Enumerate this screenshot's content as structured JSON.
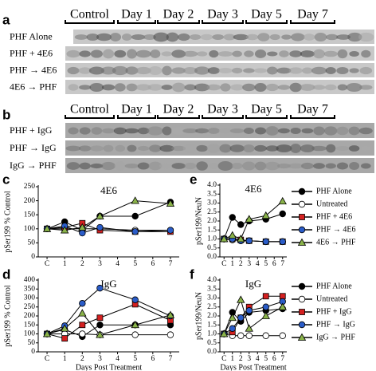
{
  "blots": [
    {
      "panel": "a",
      "columns": [
        "Control",
        "Day 1",
        "Day 2",
        "Day 3",
        "Day 5",
        "Day 7"
      ],
      "rows": [
        "PHF Alone",
        "PHF + 4E6",
        "PHF → 4E6",
        "4E6 → PHF"
      ]
    },
    {
      "panel": "b",
      "columns": [
        "Control",
        "Day 1",
        "Day 2",
        "Day 3",
        "Day 5",
        "Day 7"
      ],
      "rows": [
        "PHF + IgG",
        "PHF → IgG",
        "IgG → PHF"
      ]
    }
  ],
  "chart_data": [
    {
      "type": "line",
      "panel": "c",
      "title": "4E6",
      "ylabel": "pSer199 % Control",
      "x": [
        0,
        1,
        2,
        3,
        5,
        7
      ],
      "xlim": [
        -0.5,
        7.5
      ],
      "xticks": [
        {
          "value": 0,
          "label": "C"
        },
        1,
        2,
        3,
        4,
        5,
        6,
        7
      ],
      "ylim": [
        0,
        250
      ],
      "yticks": [
        0,
        50,
        100,
        150,
        200,
        250
      ],
      "series": [
        {
          "name": "PHF Alone",
          "color": "#000000",
          "marker": "circle",
          "values": [
            100,
            125,
            95,
            145,
            145,
            195
          ]
        },
        {
          "name": "Untreated",
          "color": "#ffffff",
          "marker": "circle",
          "values": [
            100,
            100,
            100,
            100,
            95,
            95
          ]
        },
        {
          "name": "PHF + 4E6",
          "color": "#d42020",
          "marker": "square",
          "values": [
            100,
            105,
            120,
            95,
            90,
            90
          ]
        },
        {
          "name": "PHF → 4E6",
          "color": "#2a5cc8",
          "marker": "circle",
          "values": [
            100,
            110,
            85,
            105,
            90,
            95
          ]
        },
        {
          "name": "4E6 → PHF",
          "color": "#8ab34a",
          "marker": "triangle",
          "values": [
            100,
            95,
            105,
            145,
            200,
            190
          ]
        }
      ]
    },
    {
      "type": "line",
      "panel": "e",
      "title": "4E6",
      "ylabel": "pSer199/NeuN",
      "legend": "right",
      "x": [
        0,
        1,
        2,
        3,
        5,
        7
      ],
      "xlim": [
        -0.5,
        7.5
      ],
      "xticks": [
        {
          "value": 0,
          "label": "C"
        },
        1,
        2,
        3,
        4,
        5,
        6,
        7
      ],
      "ylim": [
        0,
        4
      ],
      "yticks": [
        {
          "value": 0,
          "label": "0.0"
        },
        0.5,
        {
          "value": 1,
          "label": "1.0"
        },
        1.5,
        {
          "value": 2,
          "label": "2.0"
        },
        2.5,
        {
          "value": 3,
          "label": "3.0"
        },
        3.5,
        {
          "value": 4,
          "label": "4.0"
        }
      ],
      "series": [
        {
          "name": "PHF Alone",
          "color": "#000000",
          "marker": "circle",
          "values": [
            1,
            2.2,
            1.8,
            2.0,
            2.1,
            2.4
          ]
        },
        {
          "name": "Untreated",
          "color": "#ffffff",
          "marker": "circle",
          "values": [
            1,
            0.95,
            0.9,
            0.9,
            0.85,
            0.85
          ]
        },
        {
          "name": "PHF + 4E6",
          "color": "#d42020",
          "marker": "square",
          "values": [
            1,
            1.0,
            0.95,
            0.9,
            0.85,
            0.85
          ]
        },
        {
          "name": "PHF → 4E6",
          "color": "#2a5cc8",
          "marker": "circle",
          "values": [
            1,
            1.0,
            0.9,
            0.9,
            0.85,
            0.85
          ]
        },
        {
          "name": "4E6 → PHF",
          "color": "#8ab34a",
          "marker": "triangle",
          "values": [
            1,
            1.2,
            1.0,
            2.1,
            2.3,
            3.1
          ]
        }
      ]
    },
    {
      "type": "line",
      "panel": "d",
      "title": "IgG",
      "ylabel": "pSer199 % Control",
      "xlabel": "Days Post Treatment",
      "x": [
        0,
        1,
        2,
        3,
        5,
        7
      ],
      "xlim": [
        -0.5,
        7.5
      ],
      "xticks": [
        {
          "value": 0,
          "label": "C"
        },
        1,
        2,
        3,
        4,
        5,
        6,
        7
      ],
      "ylim": [
        0,
        400
      ],
      "yticks": [
        0,
        50,
        100,
        150,
        200,
        250,
        300,
        350,
        400
      ],
      "series": [
        {
          "name": "PHF Alone",
          "color": "#000000",
          "marker": "circle",
          "values": [
            100,
            125,
            85,
            150,
            150,
            150
          ]
        },
        {
          "name": "Untreated",
          "color": "#ffffff",
          "marker": "circle",
          "values": [
            100,
            100,
            100,
            95,
            95,
            95
          ]
        },
        {
          "name": "PHF + IgG",
          "color": "#d42020",
          "marker": "square",
          "values": [
            100,
            75,
            150,
            190,
            265,
            175
          ]
        },
        {
          "name": "PHF → IgG",
          "color": "#2a5cc8",
          "marker": "circle",
          "values": [
            100,
            145,
            270,
            355,
            290,
            200
          ]
        },
        {
          "name": "IgG → PHF",
          "color": "#8ab34a",
          "marker": "triangle",
          "values": [
            100,
            130,
            215,
            95,
            150,
            205
          ]
        }
      ]
    },
    {
      "type": "line",
      "panel": "f",
      "title": "IgG",
      "ylabel": "pSer199/NeuN",
      "xlabel": "Days Post Treatment",
      "legend": "right",
      "x": [
        0,
        1,
        2,
        3,
        5,
        7
      ],
      "xlim": [
        -0.5,
        7.5
      ],
      "xticks": [
        {
          "value": 0,
          "label": "C"
        },
        1,
        2,
        3,
        4,
        5,
        6,
        7
      ],
      "ylim": [
        0,
        4
      ],
      "yticks": [
        {
          "value": 0,
          "label": "0.0"
        },
        0.5,
        {
          "value": 1,
          "label": "1.0"
        },
        1.5,
        {
          "value": 2,
          "label": "2.0"
        },
        2.5,
        {
          "value": 3,
          "label": "3.0"
        },
        3.5,
        {
          "value": 4,
          "label": "4.0"
        }
      ],
      "series": [
        {
          "name": "PHF Alone",
          "color": "#000000",
          "marker": "circle",
          "values": [
            1,
            2.2,
            1.7,
            2.2,
            2.3,
            2.4
          ]
        },
        {
          "name": "Untreated",
          "color": "#ffffff",
          "marker": "circle",
          "values": [
            1,
            0.9,
            0.9,
            0.9,
            0.9,
            0.9
          ]
        },
        {
          "name": "PHF + IgG",
          "color": "#d42020",
          "marker": "square",
          "values": [
            1,
            1.1,
            1.9,
            2.5,
            3.1,
            3.1
          ]
        },
        {
          "name": "PHF → IgG",
          "color": "#2a5cc8",
          "marker": "circle",
          "values": [
            1,
            1.3,
            1.9,
            2.3,
            2.5,
            2.8
          ]
        },
        {
          "name": "IgG → PHF",
          "color": "#8ab34a",
          "marker": "triangle",
          "values": [
            1,
            1.9,
            2.9,
            1.3,
            2.0,
            2.5
          ]
        }
      ]
    }
  ]
}
